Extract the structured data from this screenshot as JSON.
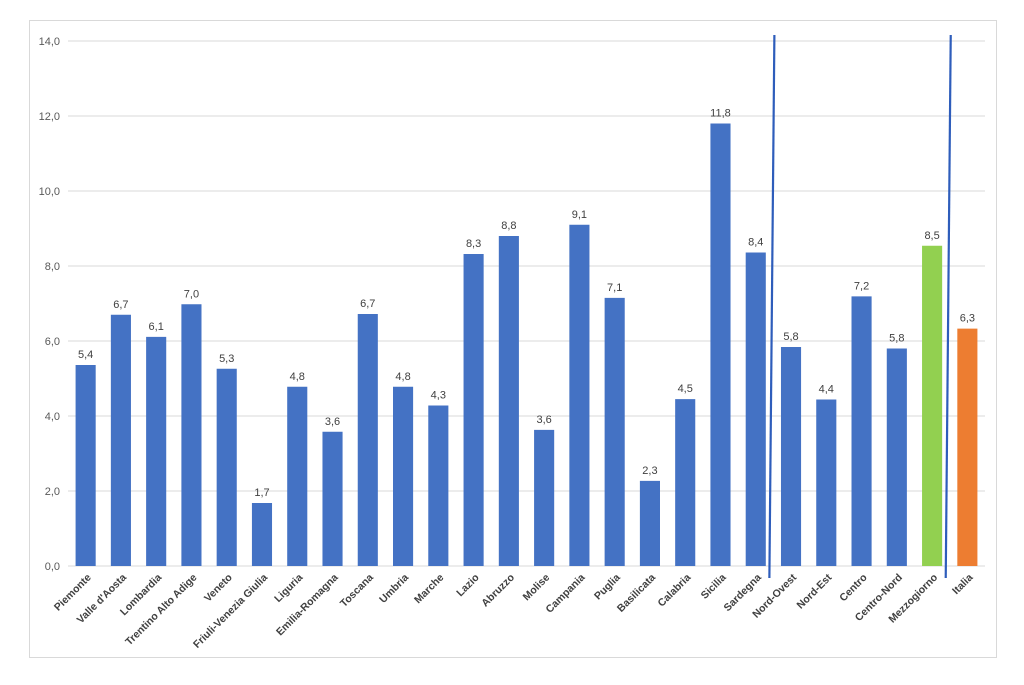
{
  "chart_data": {
    "type": "bar",
    "title": "",
    "xlabel": "",
    "ylabel": "",
    "ylim": [
      0,
      14
    ],
    "yticks": [
      "0,0",
      "2,0",
      "4,0",
      "6,0",
      "8,0",
      "10,0",
      "12,0",
      "14,0"
    ],
    "grid": true,
    "legend": "none",
    "categories": [
      "Piemonte",
      "Valle d'Aosta",
      "Lombardia",
      "Trentino Alto Adige",
      "Veneto",
      "Friuli-Venezia Giulia",
      "Liguria",
      "Emilia-Romagna",
      "Toscana",
      "Umbria",
      "Marche",
      "Lazio",
      "Abruzzo",
      "Molise",
      "Campania",
      "Puglia",
      "Basilicata",
      "Calabria",
      "Sicilia",
      "Sardegna",
      "Nord-Ovest",
      "Nord-Est",
      "Centro",
      "Centro-Nord",
      "Mezzogiorno",
      "Italia"
    ],
    "values": [
      5.36,
      6.7,
      6.11,
      6.98,
      5.26,
      1.68,
      4.78,
      3.58,
      6.72,
      4.78,
      4.28,
      8.32,
      8.8,
      3.63,
      9.1,
      7.15,
      2.27,
      4.45,
      11.8,
      8.36,
      5.84,
      4.44,
      7.19,
      5.8,
      8.54,
      6.33
    ],
    "value_labels": [
      "5,4",
      "6,7",
      "6,1",
      "7,0",
      "5,3",
      "1,7",
      "4,8",
      "3,6",
      "6,7",
      "4,8",
      "4,3",
      "8,3",
      "8,8",
      "3,6",
      "9,1",
      "7,1",
      "2,3",
      "4,5",
      "11,8",
      "8,4",
      "5,8",
      "4,4",
      "7,2",
      "5,8",
      "8,5",
      "6,3"
    ],
    "colors": {
      "default": "#4472c4",
      "Mezzogiorno": "#92d050",
      "Italia": "#ed7d31",
      "separator": "#2e5dbb",
      "grid": "#d9d9d9"
    },
    "separators_after": [
      "Sardegna",
      "Mezzogiorno"
    ]
  }
}
